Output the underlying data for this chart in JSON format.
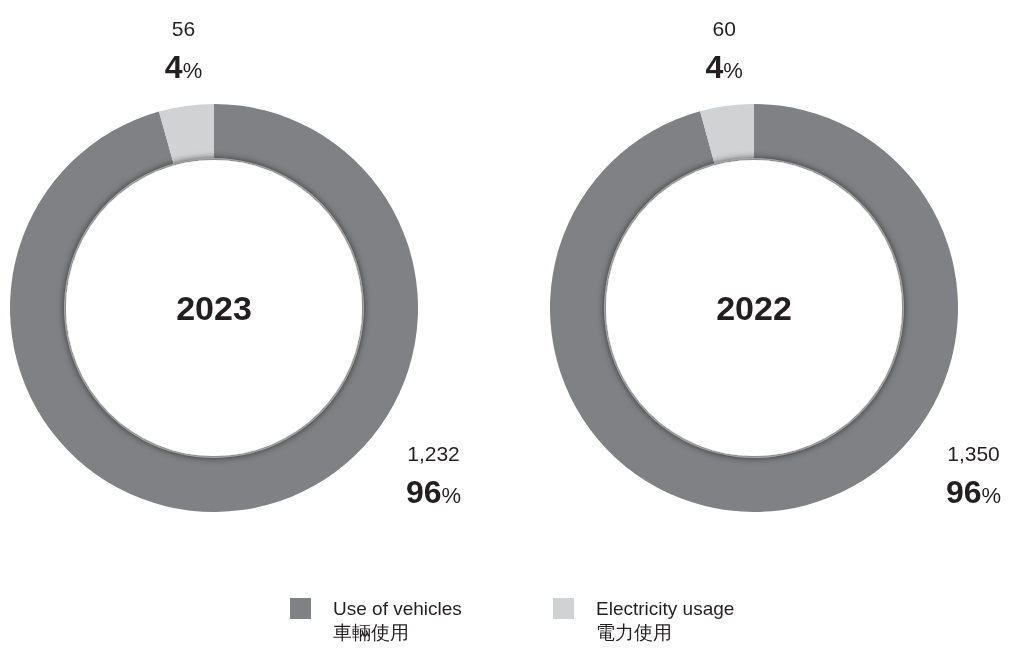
{
  "chart_data": [
    {
      "type": "donut",
      "title": "2023",
      "categories": [
        "Use of vehicles\n車輛使用",
        "Electricity usage\n電力使用"
      ],
      "values": [
        1232,
        56
      ],
      "colors": [
        "#808184",
        "#d1d2d4"
      ],
      "value_labels": [
        "1,232",
        "56"
      ],
      "legend": "bottom",
      "annotations": [
        {
          "text": "96%",
          "x": "Use of vehicles\n車輛使用"
        },
        {
          "text": "4%",
          "x": "Electricity usage\n電力使用"
        }
      ]
    },
    {
      "type": "donut",
      "title": "2022",
      "categories": [
        null,
        null
      ],
      "values": [
        1350,
        60
      ],
      "colors": [
        "#808184",
        "#d1d2d4"
      ],
      "value_labels": [
        "1,350",
        "60"
      ],
      "annotations": [
        "96%",
        "4%"
      ]
    }
  ]
}
